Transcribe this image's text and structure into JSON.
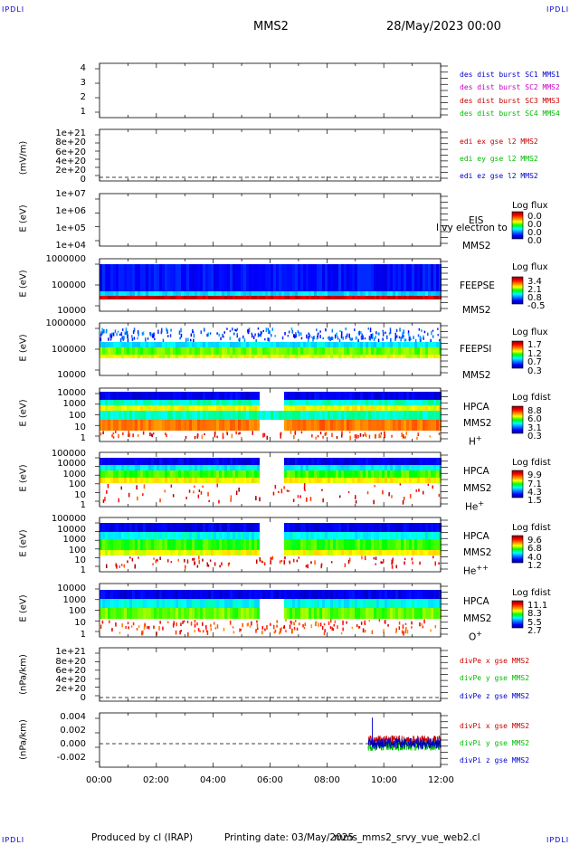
{
  "header": {
    "corner_top_left": "IPDLI",
    "corner_top_right": "IPDLI",
    "corner_bottom_left": "IPDLI",
    "corner_bottom_right": "IPDLI",
    "spacecraft": "MMS2",
    "date": "28/May/2023 00:00"
  },
  "footer": {
    "produced": "Produced by cl (IRAP)",
    "printing": "Printing date: 03/May/2025",
    "script": "mms_mms2_srvy_vue_web2.cl"
  },
  "colors": {
    "blue": "#0000cc",
    "magenta": "#cc00cc",
    "red": "#cc0000",
    "green": "#00bb00"
  },
  "chart_data": {
    "type": "heatmap",
    "x_tick_labels": [
      "00:00",
      "02:00",
      "04:00",
      "06:00",
      "08:00",
      "10:00",
      "12:00"
    ],
    "xlim_hours": [
      0,
      12
    ],
    "panels": [
      {
        "id": "burst",
        "ylabel": "",
        "y_ticks": [
          "4",
          "3",
          "2",
          "1"
        ],
        "legend": [
          {
            "text": "des dist burst SC1 MMS1",
            "color": "#0000cc"
          },
          {
            "text": "des dist burst SC2 MMS2",
            "color": "#cc00cc"
          },
          {
            "text": "des dist burst SC3 MMS3",
            "color": "#cc0000"
          },
          {
            "text": "des dist burst SC4 MMS4",
            "color": "#00bb00"
          }
        ]
      },
      {
        "id": "edi",
        "ylabel": "(mV/m)",
        "y_ticks": [
          "1e+21",
          "8e+20",
          "6e+20",
          "4e+20",
          "2e+20",
          "0"
        ],
        "legend": [
          {
            "text": "edi ex gse l2 MMS2",
            "color": "#cc0000"
          },
          {
            "text": "edi ey gse l2 MMS2",
            "color": "#00bb00"
          },
          {
            "text": "edi ez gse l2 MMS2",
            "color": "#0000cc"
          }
        ]
      },
      {
        "id": "eis",
        "ylabel": "E (eV)",
        "y_ticks": [
          "1e+07",
          "1e+06",
          "1e+05",
          "1e+04"
        ],
        "tag": [
          "EIS",
          "MMS2"
        ],
        "overlay_text": "l vy electron to",
        "cbar_title": "Log flux",
        "cbar_values": [
          "0.0",
          "0.0",
          "0.0",
          "0.0"
        ]
      },
      {
        "id": "feepse",
        "ylabel": "E (eV)",
        "y_ticks": [
          "1000000",
          "100000",
          "10000"
        ],
        "tag": [
          "FEEPSE",
          "MMS2"
        ],
        "cbar_title": "Log flux",
        "cbar_values": [
          "3.4",
          "2.1",
          "0.8",
          "-0.5"
        ]
      },
      {
        "id": "feepsi",
        "ylabel": "E (eV)",
        "y_ticks": [
          "1000000",
          "100000",
          "10000"
        ],
        "tag": [
          "FEEPSI",
          "MMS2"
        ],
        "cbar_title": "Log flux",
        "cbar_values": [
          "1.7",
          "1.2",
          "0.7",
          "0.3"
        ]
      },
      {
        "id": "hpca_h",
        "ylabel": "E (eV)",
        "y_ticks": [
          "10000",
          "1000",
          "100",
          "10",
          "1"
        ],
        "tag": [
          "HPCA",
          "MMS2",
          "H",
          "+"
        ],
        "cbar_title": "Log fdist",
        "cbar_values": [
          "8.8",
          "6.0",
          "3.1",
          "0.3"
        ]
      },
      {
        "id": "hpca_he",
        "ylabel": "E (eV)",
        "y_ticks": [
          "100000",
          "10000",
          "1000",
          "100",
          "10",
          "1"
        ],
        "tag": [
          "HPCA",
          "MMS2",
          "He",
          "+"
        ],
        "cbar_title": "Log fdist",
        "cbar_values": [
          "9.9",
          "7.1",
          "4.3",
          "1.5"
        ]
      },
      {
        "id": "hpca_hepp",
        "ylabel": "E (eV)",
        "y_ticks": [
          "100000",
          "10000",
          "1000",
          "100",
          "10",
          "1"
        ],
        "tag": [
          "HPCA",
          "MMS2",
          "He",
          "++"
        ],
        "cbar_title": "Log fdist",
        "cbar_values": [
          "9.6",
          "6.8",
          "4.0",
          "1.2"
        ]
      },
      {
        "id": "hpca_o",
        "ylabel": "E (eV)",
        "y_ticks": [
          "10000",
          "1000",
          "100",
          "10",
          "1"
        ],
        "tag": [
          "HPCA",
          "MMS2",
          "O",
          "+"
        ],
        "cbar_title": "Log fdist",
        "cbar_values": [
          "11.1",
          "8.3",
          "5.5",
          "2.7"
        ]
      },
      {
        "id": "divpe",
        "ylabel": "(nPa/km)",
        "y_ticks": [
          "1e+21",
          "8e+20",
          "6e+20",
          "4e+20",
          "2e+20",
          "0"
        ],
        "legend": [
          {
            "text": "divPe x gse MMS2",
            "color": "#cc0000"
          },
          {
            "text": "divPe y gse MMS2",
            "color": "#00bb00"
          },
          {
            "text": "divPe z gse MMS2",
            "color": "#0000cc"
          }
        ]
      },
      {
        "id": "divpi",
        "ylabel": "(nPa/km)",
        "y_ticks": [
          "0.004",
          "0.002",
          "0.000",
          "-0.002"
        ],
        "ylim": [
          -0.0035,
          0.0045
        ],
        "data_start_hour": 9.45,
        "data_end_hour": 12.0,
        "legend": [
          {
            "text": "divPi x gse MMS2",
            "color": "#cc0000"
          },
          {
            "text": "divPi y gse MMS2",
            "color": "#00bb00"
          },
          {
            "text": "divPi z gse MMS2",
            "color": "#0000cc"
          }
        ]
      }
    ]
  }
}
